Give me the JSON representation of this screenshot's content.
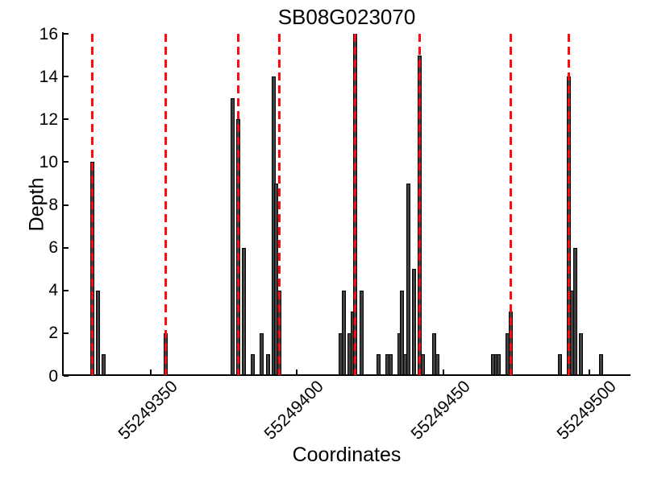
{
  "chart_data": {
    "type": "bar",
    "title": "SB08G023070",
    "xlabel": "Coordinates",
    "ylabel": "Depth",
    "xlim": [
      55249320,
      55249514
    ],
    "ylim": [
      0,
      16
    ],
    "xticks": [
      55249350,
      55249400,
      55249450,
      55249500
    ],
    "yticks": [
      0,
      2,
      4,
      6,
      8,
      10,
      12,
      14,
      16
    ],
    "grid": false,
    "legend": "none",
    "bar_fill_color": "#404040",
    "bar_edge_color": "#000000",
    "marker_line_color": "#fd0d0d",
    "marker_line_style": "dashed",
    "red_dashed_lines_x": [
      55249330,
      55249355,
      55249380,
      55249394,
      55249420,
      55249442,
      55249473,
      55249493
    ],
    "bars": [
      {
        "x": 55249330,
        "depth": 10
      },
      {
        "x": 55249332,
        "depth": 4
      },
      {
        "x": 55249334,
        "depth": 1
      },
      {
        "x": 55249355,
        "depth": 2
      },
      {
        "x": 55249378,
        "depth": 13
      },
      {
        "x": 55249380,
        "depth": 12
      },
      {
        "x": 55249382,
        "depth": 6
      },
      {
        "x": 55249385,
        "depth": 1
      },
      {
        "x": 55249388,
        "depth": 2
      },
      {
        "x": 55249390,
        "depth": 1
      },
      {
        "x": 55249392,
        "depth": 14
      },
      {
        "x": 55249393,
        "depth": 9
      },
      {
        "x": 55249394,
        "depth": 4
      },
      {
        "x": 55249415,
        "depth": 2
      },
      {
        "x": 55249416,
        "depth": 4
      },
      {
        "x": 55249418,
        "depth": 2
      },
      {
        "x": 55249419,
        "depth": 3
      },
      {
        "x": 55249420,
        "depth": 16
      },
      {
        "x": 55249422,
        "depth": 4
      },
      {
        "x": 55249428,
        "depth": 1
      },
      {
        "x": 55249431,
        "depth": 1
      },
      {
        "x": 55249432,
        "depth": 1
      },
      {
        "x": 55249435,
        "depth": 2
      },
      {
        "x": 55249436,
        "depth": 4
      },
      {
        "x": 55249437,
        "depth": 1
      },
      {
        "x": 55249438,
        "depth": 9
      },
      {
        "x": 55249440,
        "depth": 5
      },
      {
        "x": 55249442,
        "depth": 15
      },
      {
        "x": 55249443,
        "depth": 1
      },
      {
        "x": 55249447,
        "depth": 2
      },
      {
        "x": 55249448,
        "depth": 1
      },
      {
        "x": 55249467,
        "depth": 1
      },
      {
        "x": 55249468,
        "depth": 1
      },
      {
        "x": 55249469,
        "depth": 1
      },
      {
        "x": 55249472,
        "depth": 2
      },
      {
        "x": 55249473,
        "depth": 3
      },
      {
        "x": 55249490,
        "depth": 1
      },
      {
        "x": 55249493,
        "depth": 14
      },
      {
        "x": 55249494,
        "depth": 4
      },
      {
        "x": 55249495,
        "depth": 6
      },
      {
        "x": 55249497,
        "depth": 2
      },
      {
        "x": 55249504,
        "depth": 1
      }
    ]
  }
}
